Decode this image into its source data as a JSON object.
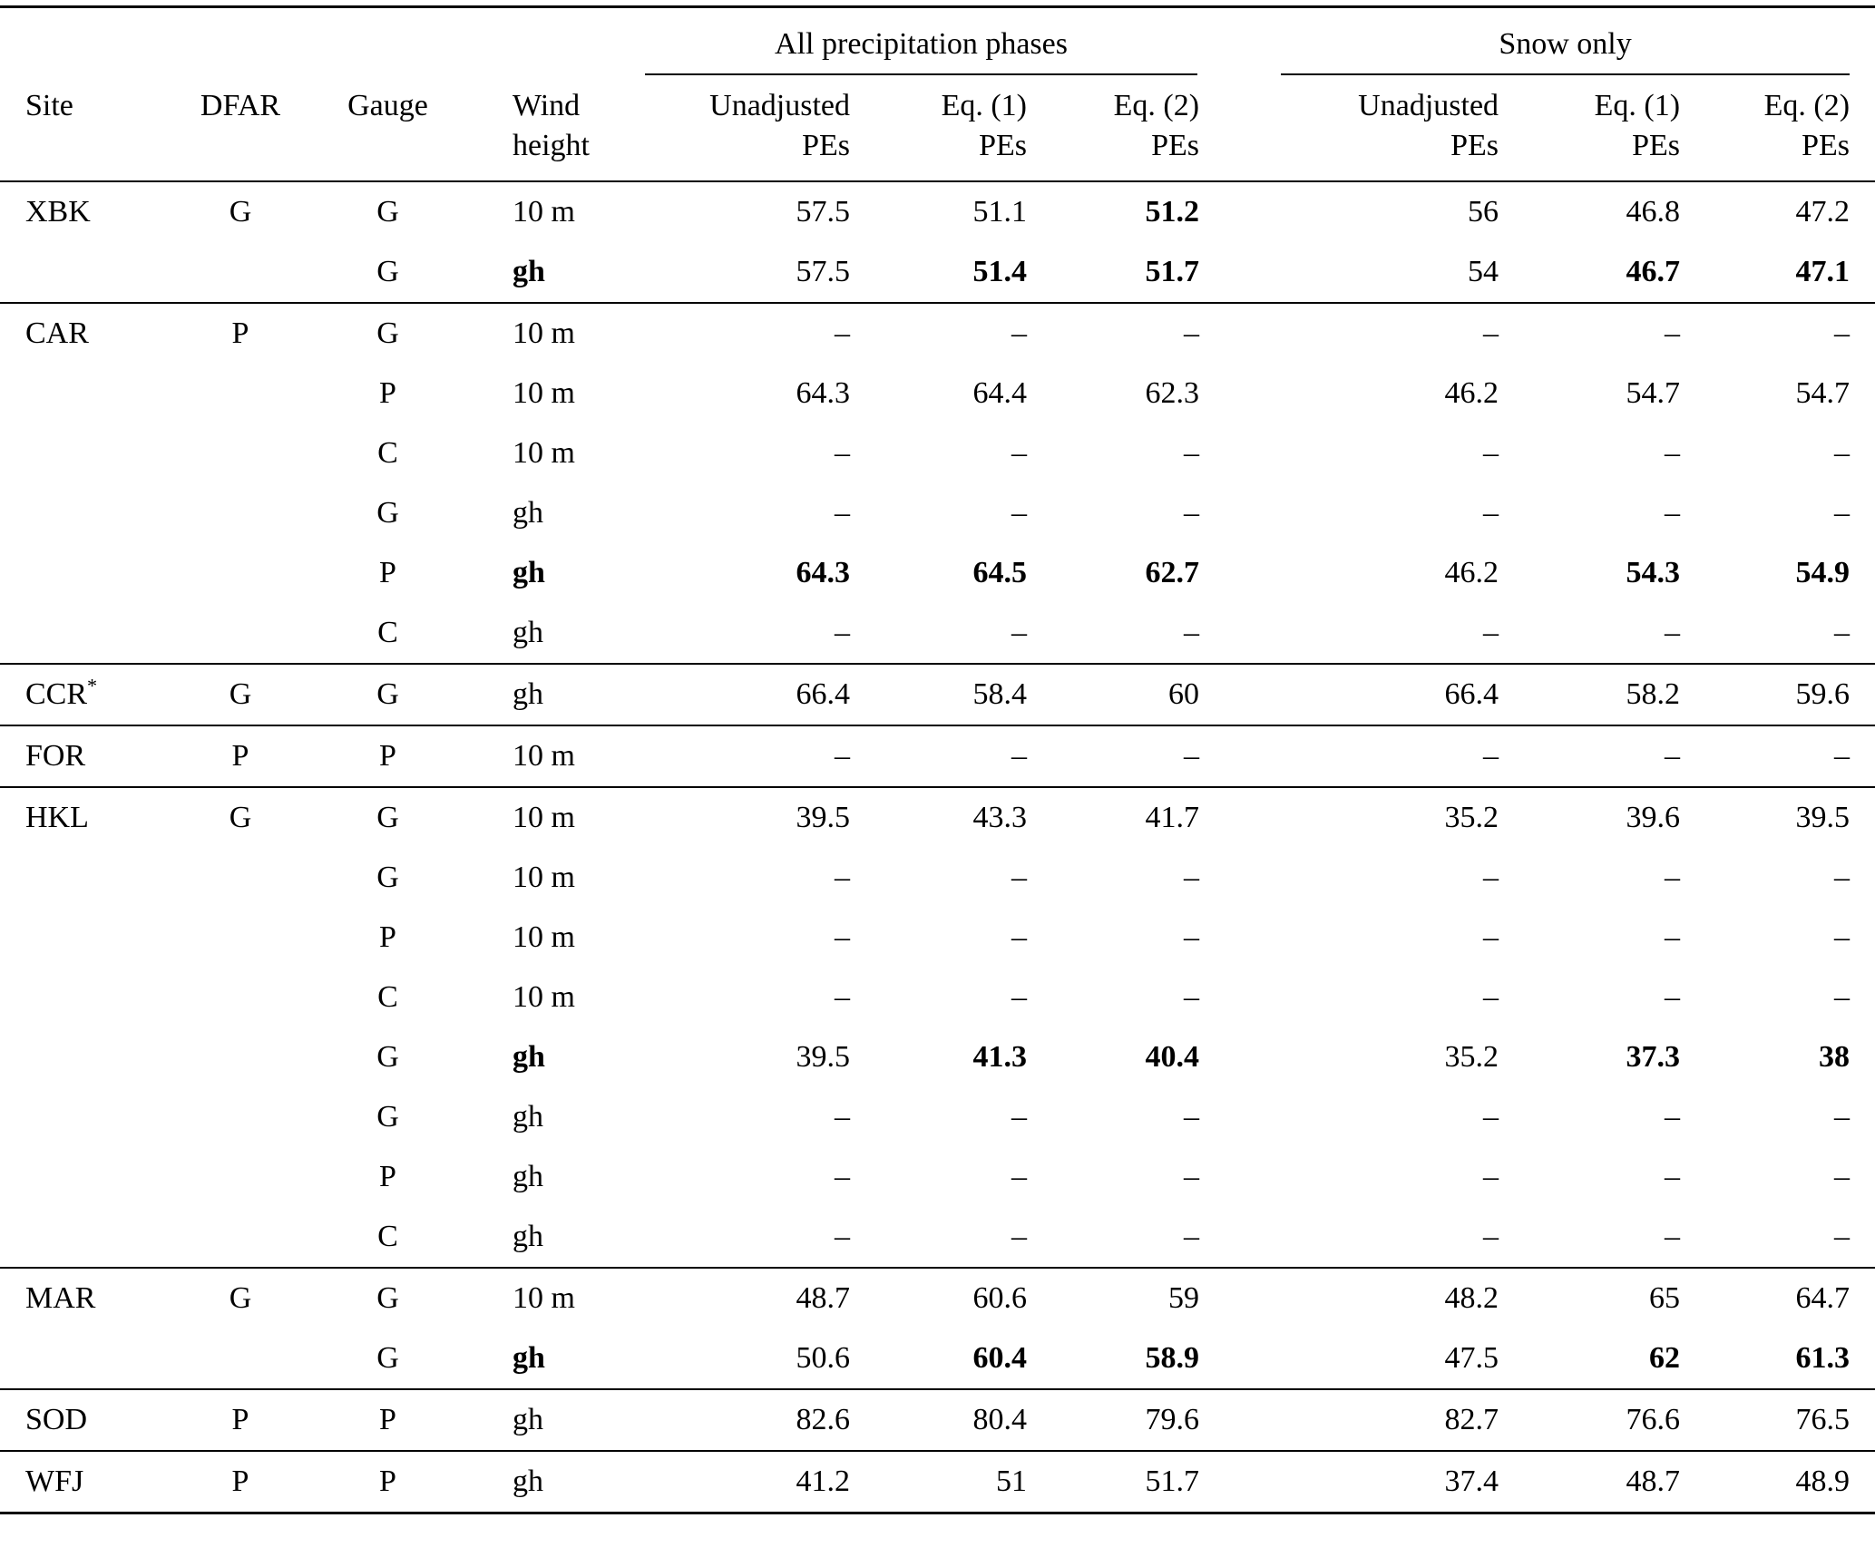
{
  "page": {
    "background_color": "#ffffff",
    "text_color": "#000000"
  },
  "table": {
    "headers": {
      "site": "Site",
      "dfar": "DFAR",
      "gauge": "Gauge",
      "wind_line1": "Wind",
      "wind_line2": "height",
      "groups": [
        {
          "label": "All precipitation phases"
        },
        {
          "label": "Snow only"
        }
      ],
      "subheaders": [
        {
          "line1": "Unadjusted",
          "line2": "PEs"
        },
        {
          "line1": "Eq. (1)",
          "line2": "PEs"
        },
        {
          "line1": "Eq. (2)",
          "line2": "PEs"
        }
      ]
    },
    "sections": [
      {
        "rows": [
          {
            "site": "XBK",
            "dfar": "G",
            "gauge": "G",
            "wind": "10 m",
            "wind_bold": false,
            "values": [
              "57.5",
              "51.1",
              "51.2",
              "56",
              "46.8",
              "47.2"
            ],
            "bold": [
              false,
              false,
              true,
              false,
              false,
              false
            ]
          },
          {
            "site": "",
            "dfar": "",
            "gauge": "G",
            "wind": "gh",
            "wind_bold": true,
            "values": [
              "57.5",
              "51.4",
              "51.7",
              "54",
              "46.7",
              "47.1"
            ],
            "bold": [
              false,
              true,
              true,
              false,
              true,
              true
            ]
          }
        ]
      },
      {
        "rows": [
          {
            "site": "CAR",
            "dfar": "P",
            "gauge": "G",
            "wind": "10 m",
            "wind_bold": false,
            "values": [
              "–",
              "–",
              "–",
              "–",
              "–",
              "–"
            ],
            "bold": [
              false,
              false,
              false,
              false,
              false,
              false
            ]
          },
          {
            "site": "",
            "dfar": "",
            "gauge": "P",
            "wind": "10 m",
            "wind_bold": false,
            "values": [
              "64.3",
              "64.4",
              "62.3",
              "46.2",
              "54.7",
              "54.7"
            ],
            "bold": [
              false,
              false,
              false,
              false,
              false,
              false
            ]
          },
          {
            "site": "",
            "dfar": "",
            "gauge": "C",
            "wind": "10 m",
            "wind_bold": false,
            "values": [
              "–",
              "–",
              "–",
              "–",
              "–",
              "–"
            ],
            "bold": [
              false,
              false,
              false,
              false,
              false,
              false
            ]
          },
          {
            "site": "",
            "dfar": "",
            "gauge": "G",
            "wind": "gh",
            "wind_bold": false,
            "values": [
              "–",
              "–",
              "–",
              "–",
              "–",
              "–"
            ],
            "bold": [
              false,
              false,
              false,
              false,
              false,
              false
            ]
          },
          {
            "site": "",
            "dfar": "",
            "gauge": "P",
            "wind": "gh",
            "wind_bold": true,
            "values": [
              "64.3",
              "64.5",
              "62.7",
              "46.2",
              "54.3",
              "54.9"
            ],
            "bold": [
              true,
              true,
              true,
              false,
              true,
              true
            ]
          },
          {
            "site": "",
            "dfar": "",
            "gauge": "C",
            "wind": "gh",
            "wind_bold": false,
            "values": [
              "–",
              "–",
              "–",
              "–",
              "–",
              "–"
            ],
            "bold": [
              false,
              false,
              false,
              false,
              false,
              false
            ]
          }
        ]
      },
      {
        "rows": [
          {
            "site": "CCR*",
            "dfar": "G",
            "gauge": "G",
            "wind": "gh",
            "wind_bold": false,
            "values": [
              "66.4",
              "58.4",
              "60",
              "66.4",
              "58.2",
              "59.6"
            ],
            "bold": [
              false,
              false,
              false,
              false,
              false,
              false
            ]
          }
        ]
      },
      {
        "rows": [
          {
            "site": "FOR",
            "dfar": "P",
            "gauge": "P",
            "wind": "10 m",
            "wind_bold": false,
            "values": [
              "–",
              "–",
              "–",
              "–",
              "–",
              "–"
            ],
            "bold": [
              false,
              false,
              false,
              false,
              false,
              false
            ]
          }
        ]
      },
      {
        "rows": [
          {
            "site": "HKL",
            "dfar": "G",
            "gauge": "G",
            "wind": "10 m",
            "wind_bold": false,
            "values": [
              "39.5",
              "43.3",
              "41.7",
              "35.2",
              "39.6",
              "39.5"
            ],
            "bold": [
              false,
              false,
              false,
              false,
              false,
              false
            ]
          },
          {
            "site": "",
            "dfar": "",
            "gauge": "G",
            "wind": "10 m",
            "wind_bold": false,
            "values": [
              "–",
              "–",
              "–",
              "–",
              "–",
              "–"
            ],
            "bold": [
              false,
              false,
              false,
              false,
              false,
              false
            ]
          },
          {
            "site": "",
            "dfar": "",
            "gauge": "P",
            "wind": "10 m",
            "wind_bold": false,
            "values": [
              "–",
              "–",
              "–",
              "–",
              "–",
              "–"
            ],
            "bold": [
              false,
              false,
              false,
              false,
              false,
              false
            ]
          },
          {
            "site": "",
            "dfar": "",
            "gauge": "C",
            "wind": "10 m",
            "wind_bold": false,
            "values": [
              "–",
              "–",
              "–",
              "–",
              "–",
              "–"
            ],
            "bold": [
              false,
              false,
              false,
              false,
              false,
              false
            ]
          },
          {
            "site": "",
            "dfar": "",
            "gauge": "G",
            "wind": "gh",
            "wind_bold": true,
            "values": [
              "39.5",
              "41.3",
              "40.4",
              "35.2",
              "37.3",
              "38"
            ],
            "bold": [
              false,
              true,
              true,
              false,
              true,
              true
            ]
          },
          {
            "site": "",
            "dfar": "",
            "gauge": "G",
            "wind": "gh",
            "wind_bold": false,
            "values": [
              "–",
              "–",
              "–",
              "–",
              "–",
              "–"
            ],
            "bold": [
              false,
              false,
              false,
              false,
              false,
              false
            ]
          },
          {
            "site": "",
            "dfar": "",
            "gauge": "P",
            "wind": "gh",
            "wind_bold": false,
            "values": [
              "–",
              "–",
              "–",
              "–",
              "–",
              "–"
            ],
            "bold": [
              false,
              false,
              false,
              false,
              false,
              false
            ]
          },
          {
            "site": "",
            "dfar": "",
            "gauge": "C",
            "wind": "gh",
            "wind_bold": false,
            "values": [
              "–",
              "–",
              "–",
              "–",
              "–",
              "–"
            ],
            "bold": [
              false,
              false,
              false,
              false,
              false,
              false
            ]
          }
        ]
      },
      {
        "rows": [
          {
            "site": "MAR",
            "dfar": "G",
            "gauge": "G",
            "wind": "10 m",
            "wind_bold": false,
            "values": [
              "48.7",
              "60.6",
              "59",
              "48.2",
              "65",
              "64.7"
            ],
            "bold": [
              false,
              false,
              false,
              false,
              false,
              false
            ]
          },
          {
            "site": "",
            "dfar": "",
            "gauge": "G",
            "wind": "gh",
            "wind_bold": true,
            "values": [
              "50.6",
              "60.4",
              "58.9",
              "47.5",
              "62",
              "61.3"
            ],
            "bold": [
              false,
              true,
              true,
              false,
              true,
              true
            ]
          }
        ]
      },
      {
        "rows": [
          {
            "site": "SOD",
            "dfar": "P",
            "gauge": "P",
            "wind": "gh",
            "wind_bold": false,
            "values": [
              "82.6",
              "80.4",
              "79.6",
              "82.7",
              "76.6",
              "76.5"
            ],
            "bold": [
              false,
              false,
              false,
              false,
              false,
              false
            ]
          }
        ]
      },
      {
        "rows": [
          {
            "site": "WFJ",
            "dfar": "P",
            "gauge": "P",
            "wind": "gh",
            "wind_bold": false,
            "values": [
              "41.2",
              "51",
              "51.7",
              "37.4",
              "48.7",
              "48.9"
            ],
            "bold": [
              false,
              false,
              false,
              false,
              false,
              false
            ]
          }
        ]
      }
    ]
  }
}
